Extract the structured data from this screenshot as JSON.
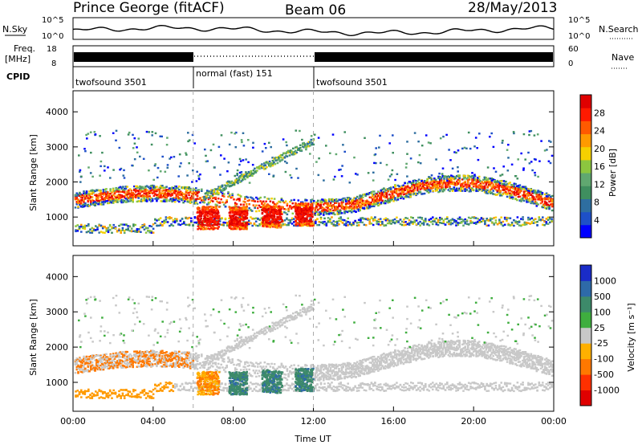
{
  "header": {
    "station": "Prince George (fitACF)",
    "beam": "Beam 06",
    "date": "28/May/2013"
  },
  "top_panels": {
    "nsky_label": "N.Sky",
    "nsearch_label": "N.Search",
    "noise_ticks": [
      "10^5",
      "10^0"
    ],
    "freq_label_1": "Freq.",
    "freq_label_2": "[MHz]",
    "freq_ticks": [
      "18",
      "8"
    ],
    "nave_label": "Nave",
    "nave_ticks": [
      "60",
      "0"
    ],
    "cpid_label": "CPID",
    "cpid_segments": [
      {
        "name": "twofsound 3501",
        "start_h": 0,
        "end_h": 6
      },
      {
        "name": "normal (fast) 151",
        "start_h": 6,
        "end_h": 12
      },
      {
        "name": "twofsound 3501",
        "start_h": 12,
        "end_h": 24
      }
    ]
  },
  "chart_data": [
    {
      "type": "heatmap",
      "title": "Power",
      "xlabel": "Time UT",
      "ylabel": "Slant Range [km]",
      "xlim": [
        0,
        24
      ],
      "ylim": [
        180,
        4600
      ],
      "x_ticks": [
        "00:00",
        "04:00",
        "08:00",
        "12:00",
        "16:00",
        "20:00",
        "00:00"
      ],
      "y_ticks": [
        1000,
        2000,
        3000,
        4000
      ],
      "colorbar_label": "Power [dB]",
      "colorbar_ticks": [
        4,
        8,
        12,
        16,
        20,
        24,
        28
      ],
      "colorbar_colors": [
        "#0000ff",
        "#1e50c8",
        "#2e6ea0",
        "#3f8f5f",
        "#60a870",
        "#8cc63f",
        "#f5d000",
        "#ff9a00",
        "#ff5a00",
        "#ff1a00",
        "#e00000"
      ],
      "grid": false
    },
    {
      "type": "heatmap",
      "title": "Velocity",
      "xlabel": "Time UT",
      "ylabel": "Slant Range [km]",
      "xlim": [
        0,
        24
      ],
      "ylim": [
        180,
        4600
      ],
      "x_ticks": [
        "00:00",
        "04:00",
        "08:00",
        "12:00",
        "16:00",
        "20:00",
        "00:00"
      ],
      "y_ticks": [
        1000,
        2000,
        3000,
        4000
      ],
      "colorbar_label": "Velocity [m s⁻¹]",
      "colorbar_ticks": [
        1000,
        500,
        100,
        25,
        -25,
        -100,
        -500,
        -1000
      ],
      "colorbar_colors": [
        "#1a2cc8",
        "#2e6aa8",
        "#3d8a6a",
        "#3fae3f",
        "#c8c8c8",
        "#ffb000",
        "#ff7800",
        "#ff3000",
        "#e00000"
      ],
      "grid": false
    }
  ]
}
